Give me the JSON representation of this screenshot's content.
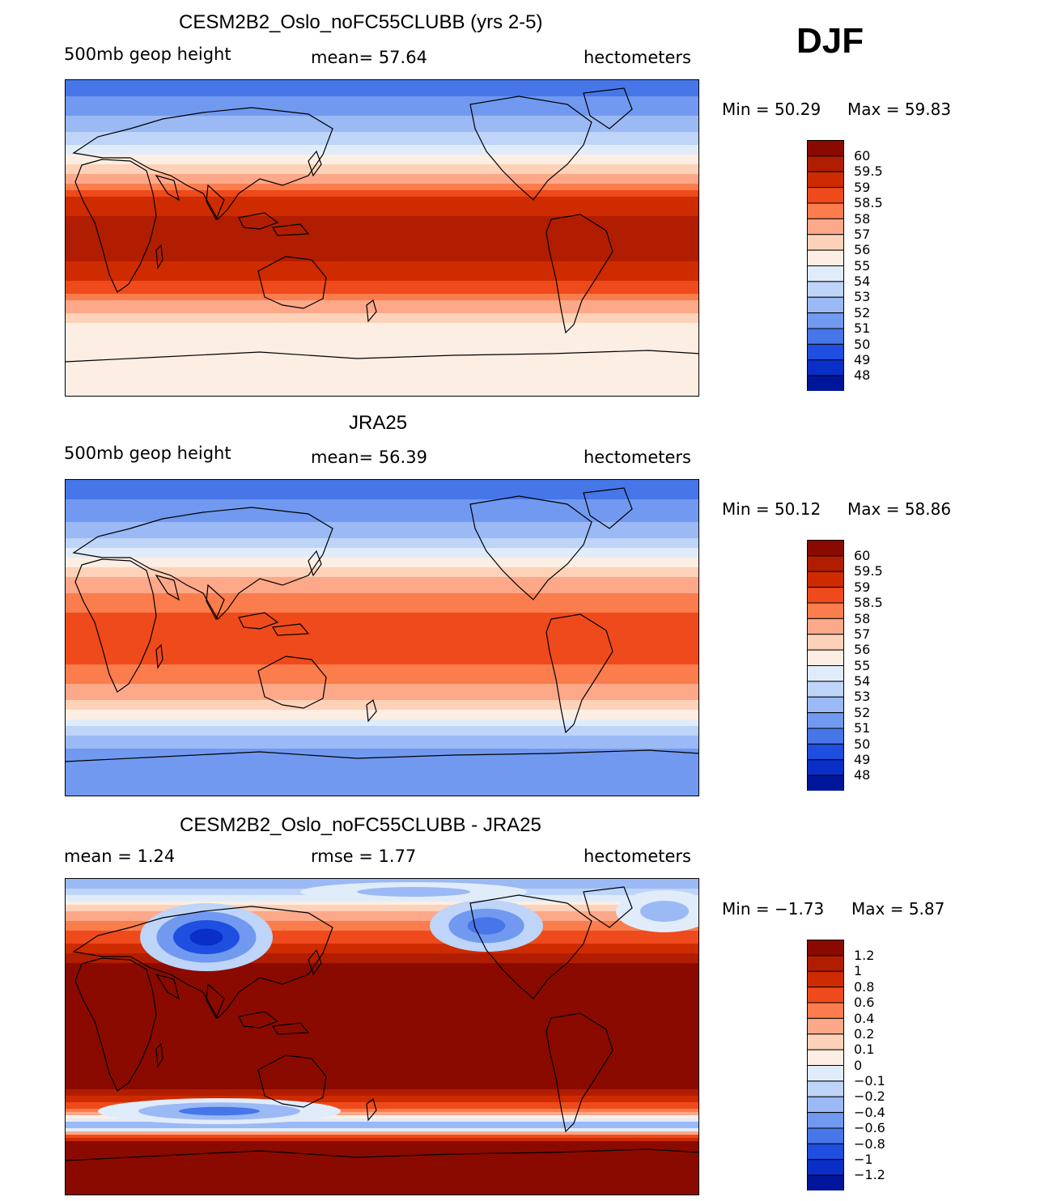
{
  "season": "DJF",
  "chart_data": [
    {
      "type": "heatmap",
      "title": "CESM2B2_Oslo_noFC55CLUBB (yrs 2-5)",
      "variable": "500mb geop height",
      "stat_text": "mean=  57.64",
      "units": "hectometers",
      "mean": 57.64,
      "min_text": "Min =   50.29",
      "max_text": "Max =   59.83",
      "min": 50.29,
      "max": 59.83,
      "contour_levels": [
        "60",
        "59.5",
        "59",
        "58.5",
        "58",
        "57",
        "56",
        "55",
        "54",
        "53",
        "52",
        "51",
        "50",
        "49",
        "48"
      ],
      "colors": [
        "#8b0a00",
        "#b11d00",
        "#cf2b00",
        "#ef4a1b",
        "#fb7c4c",
        "#fca889",
        "#fdd2b9",
        "#fdeee3",
        "#e1ecfb",
        "#bed4f8",
        "#9ab9f5",
        "#7199ef",
        "#4676e8",
        "#1f4fe0",
        "#0a2fc8",
        "#00169a"
      ],
      "approx_profile_lat_degN": [
        90,
        80,
        70,
        60,
        50,
        40,
        30,
        20,
        10,
        0,
        -10,
        -20,
        -30,
        -40,
        -50,
        -60,
        -70,
        -80,
        -90
      ],
      "approx_profile_values": [
        50.4,
        51.0,
        51.9,
        53.0,
        54.6,
        56.6,
        58.3,
        59.3,
        59.6,
        59.7,
        59.6,
        59.3,
        58.6,
        57.2,
        55.7,
        55.3,
        55.5,
        55.6,
        55.8
      ]
    },
    {
      "type": "heatmap",
      "title": "JRA25",
      "variable": "500mb geop height",
      "stat_text": "mean=  56.39",
      "units": "hectometers",
      "mean": 56.39,
      "min_text": "Min =   50.12",
      "max_text": "Max =   58.86",
      "min": 50.12,
      "max": 58.86,
      "contour_levels": [
        "60",
        "59.5",
        "59",
        "58.5",
        "58",
        "57",
        "56",
        "55",
        "54",
        "53",
        "52",
        "51",
        "50",
        "49",
        "48"
      ],
      "colors": [
        "#8b0a00",
        "#b11d00",
        "#cf2b00",
        "#ef4a1b",
        "#fb7c4c",
        "#fca889",
        "#fdd2b9",
        "#fdeee3",
        "#e1ecfb",
        "#bed4f8",
        "#9ab9f5",
        "#7199ef",
        "#4676e8",
        "#1f4fe0",
        "#0a2fc8",
        "#00169a"
      ],
      "approx_profile_lat_degN": [
        90,
        80,
        70,
        60,
        50,
        40,
        30,
        20,
        10,
        0,
        -10,
        -20,
        -30,
        -40,
        -50,
        -60,
        -70,
        -80,
        -90
      ],
      "approx_profile_values": [
        50.3,
        50.9,
        51.6,
        52.6,
        54.2,
        56.2,
        57.6,
        58.4,
        58.6,
        58.7,
        58.6,
        58.4,
        57.7,
        56.3,
        54.0,
        52.2,
        51.3,
        51.3,
        51.4
      ]
    },
    {
      "type": "heatmap",
      "title": "CESM2B2_Oslo_noFC55CLUBB - JRA25",
      "variable": "",
      "stat_text": "mean =   1.24",
      "stat2_text": "rmse =   1.77",
      "units": "hectometers",
      "mean": 1.24,
      "rmse": 1.77,
      "min_text": "Min =  −1.73",
      "max_text": "Max =   5.87",
      "min": -1.73,
      "max": 5.87,
      "contour_levels": [
        "1.2",
        "1",
        "0.8",
        "0.6",
        "0.4",
        "0.2",
        "0.1",
        "0",
        "−0.1",
        "−0.2",
        "−0.4",
        "−0.6",
        "−0.8",
        "−1",
        "−1.2"
      ],
      "colors": [
        "#8b0a00",
        "#b11d00",
        "#cf2b00",
        "#ef4a1b",
        "#fb7c4c",
        "#fca889",
        "#fdd2b9",
        "#fdeee3",
        "#e1ecfb",
        "#bed4f8",
        "#9ab9f5",
        "#7199ef",
        "#4676e8",
        "#1f4fe0",
        "#0a2fc8",
        "#00169a"
      ],
      "approx_profile_lat_degN": [
        90,
        80,
        70,
        60,
        50,
        40,
        30,
        20,
        10,
        0,
        -10,
        -20,
        -30,
        -40,
        -50,
        -60,
        -70,
        -80,
        -90
      ],
      "approx_profile_values": [
        -0.3,
        -0.1,
        0.3,
        0.6,
        0.9,
        1.3,
        1.3,
        1.3,
        1.3,
        1.3,
        1.4,
        1.4,
        1.2,
        0.6,
        -0.4,
        1.3,
        4.0,
        4.5,
        4.6
      ]
    }
  ]
}
